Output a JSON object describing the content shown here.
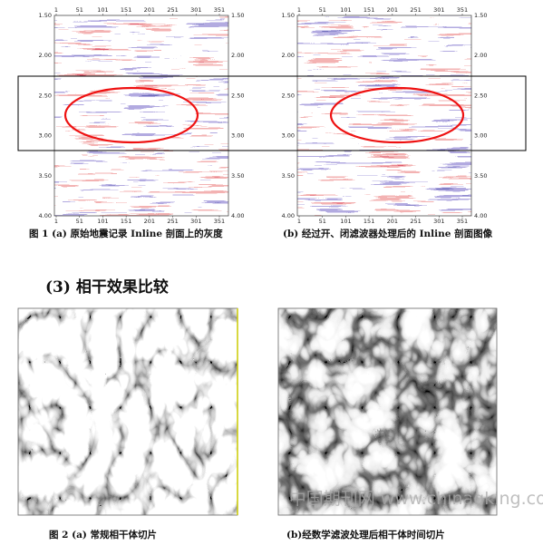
{
  "figure1": {
    "panels": [
      {
        "x_ticks": [
          "1",
          "51",
          "101",
          "151",
          "201",
          "251",
          "301",
          "351"
        ],
        "y_ticks": [
          "1.50",
          "2.00",
          "2.50",
          "3.00",
          "3.50",
          "4.00"
        ]
      },
      {
        "x_ticks": [
          "1",
          "51",
          "101",
          "151",
          "201",
          "251",
          "301",
          "351"
        ],
        "y_ticks": [
          "1.50",
          "2.00",
          "2.50",
          "3.00",
          "3.50",
          "4.00"
        ]
      }
    ],
    "caption_a": "图 1  (a) 原始地震记录 Inline 剖面上的灰度",
    "caption_b": "(b) 经过开、闭滤波器处理后的 Inline 剖面图像"
  },
  "section_heading": "(3) 相干效果比较",
  "figure2": {
    "caption_a": "图 2  (a) 常规相干体切片",
    "caption_b": "(b)经数学滤波处理后相干体时间切片"
  },
  "watermark": "中国期刊网  www.chinaqking.com"
}
